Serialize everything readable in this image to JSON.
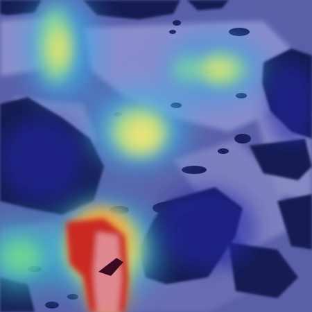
{
  "image": {
    "kind": "heatmap-overlay-on-grayscale-terrain",
    "colormap": "jet",
    "colors": {
      "cold": "#1c2a9a",
      "cool": "#2f6fe0",
      "cyan": "#38c8d8",
      "green": "#6fe08a",
      "yellow": "#f0e86a",
      "orange": "#f08a2a",
      "hot": "#b01818",
      "terrain_dark": "#101646",
      "terrain_light": "#8c8cc8"
    },
    "hotspots": [
      {
        "region": "lower-center-left",
        "intensity": 1.0
      },
      {
        "region": "upper-left-stripe",
        "intensity": 0.7
      },
      {
        "region": "center",
        "intensity": 0.65
      },
      {
        "region": "upper-right",
        "intensity": 0.55
      },
      {
        "region": "lower-left",
        "intensity": 0.45
      }
    ]
  }
}
